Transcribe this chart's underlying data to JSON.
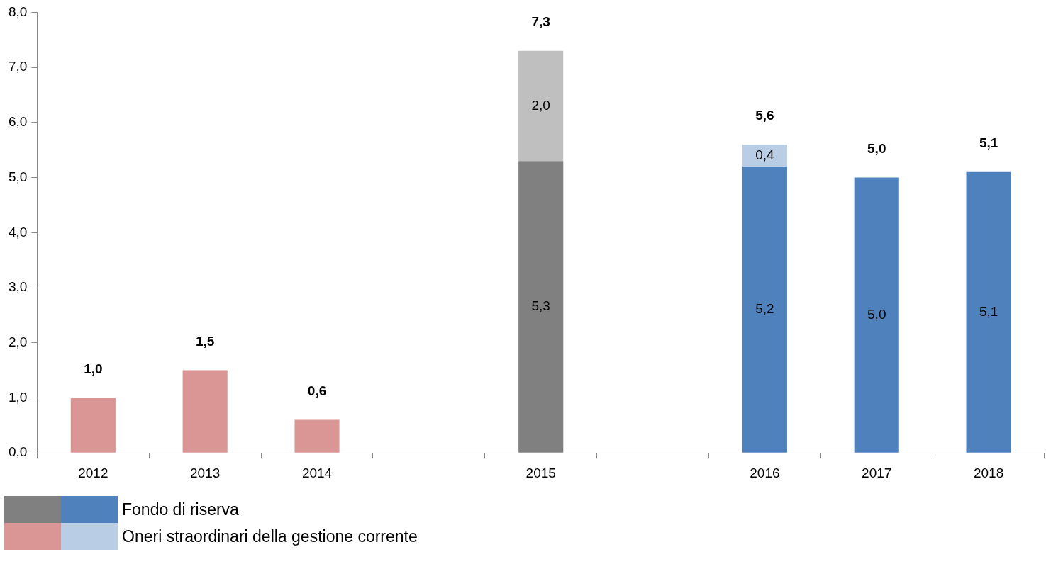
{
  "chart_data": {
    "type": "bar",
    "stacked": true,
    "categories": [
      "2012",
      "2013",
      "2014",
      null,
      "2015",
      null,
      "2016",
      "2017",
      "2018"
    ],
    "series": [
      {
        "name": "Fondo di riserva",
        "colors": [
          "#4f81bd",
          "#4f81bd",
          "#4f81bd",
          "#4f81bd",
          "#808080",
          "#4f81bd",
          "#4f81bd",
          "#4f81bd",
          "#4f81bd"
        ],
        "values": [
          null,
          null,
          null,
          null,
          5.3,
          null,
          5.2,
          5.0,
          5.1
        ],
        "value_labels": [
          null,
          null,
          null,
          null,
          "5,3",
          null,
          "5,2",
          "5,0",
          "5,1"
        ]
      },
      {
        "name": "Oneri straordinari della gestione corrente",
        "colors": [
          "#da9694",
          "#da9694",
          "#da9694",
          "#da9694",
          "#bfbfbf",
          "#b9cde5",
          "#b9cde5",
          "#b9cde5",
          "#b9cde5"
        ],
        "values": [
          1.0,
          1.5,
          0.6,
          null,
          2.0,
          null,
          0.4,
          null,
          null
        ],
        "value_labels": [
          null,
          null,
          null,
          null,
          "2,0",
          null,
          "0,4",
          null,
          null
        ]
      }
    ],
    "totals": [
      "1,0",
      "1,5",
      "0,6",
      null,
      "7,3",
      null,
      "5,6",
      "5,0",
      "5,1"
    ],
    "ylim": [
      0,
      8
    ],
    "yticks": [
      {
        "value": 0,
        "label": "0,0"
      },
      {
        "value": 1,
        "label": "1,0"
      },
      {
        "value": 2,
        "label": "2,0"
      },
      {
        "value": 3,
        "label": "3,0"
      },
      {
        "value": 4,
        "label": "4,0"
      },
      {
        "value": 5,
        "label": "5,0"
      },
      {
        "value": 6,
        "label": "6,0"
      },
      {
        "value": 7,
        "label": "7,0"
      },
      {
        "value": 8,
        "label": "8,0"
      }
    ],
    "grid": false,
    "legend": "bottom left"
  }
}
